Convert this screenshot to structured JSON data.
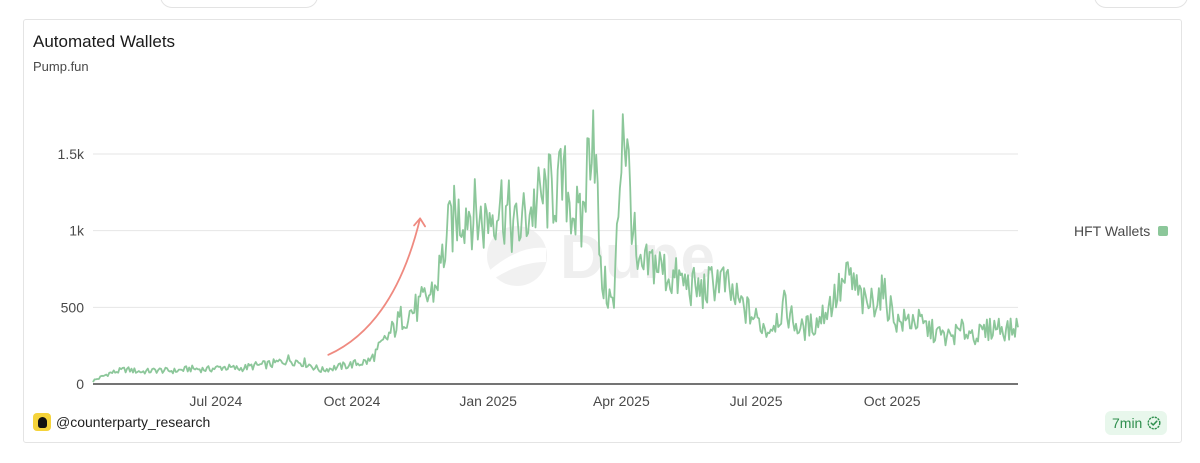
{
  "card": {
    "title": "Automated Wallets",
    "subtitle": "Pump.fun",
    "attribution": "@counterparty_research",
    "refresh_badge": "7min",
    "watermark": "Dune"
  },
  "colors": {
    "series": "#8cc79a",
    "annotation_arrow": "#ef8a80",
    "grid": "#e6e6e6",
    "badge_bg": "#e8f7ec",
    "badge_text": "#2f8f4e"
  },
  "chart_data": {
    "type": "line",
    "title": "Automated Wallets",
    "subtitle": "Pump.fun",
    "xlabel": "",
    "ylabel": "",
    "x_range": [
      "2024-04-09",
      "2025-12-25"
    ],
    "ylim": [
      0,
      1800
    ],
    "y_ticks": [
      {
        "value": 0,
        "label": "0"
      },
      {
        "value": 500,
        "label": "500"
      },
      {
        "value": 1000,
        "label": "1k"
      },
      {
        "value": 1500,
        "label": "1.5k"
      }
    ],
    "x_ticks": [
      {
        "date": "2024-07-01",
        "label": "Jul 2024"
      },
      {
        "date": "2024-10-01",
        "label": "Oct 2024"
      },
      {
        "date": "2025-01-01",
        "label": "Jan 2025"
      },
      {
        "date": "2025-04-01",
        "label": "Apr 2025"
      },
      {
        "date": "2025-07-01",
        "label": "Jul 2025"
      },
      {
        "date": "2025-10-01",
        "label": "Oct 2025"
      }
    ],
    "grid": true,
    "legend": "right",
    "series": [
      {
        "name": "HFT Wallets",
        "points": [
          [
            "2024-04-09",
            20
          ],
          [
            "2024-04-20",
            70
          ],
          [
            "2024-05-01",
            95
          ],
          [
            "2024-05-12",
            80
          ],
          [
            "2024-05-23",
            90
          ],
          [
            "2024-06-03",
            85
          ],
          [
            "2024-06-14",
            100
          ],
          [
            "2024-06-25",
            95
          ],
          [
            "2024-07-06",
            110
          ],
          [
            "2024-07-17",
            100
          ],
          [
            "2024-07-28",
            120
          ],
          [
            "2024-08-08",
            130
          ],
          [
            "2024-08-19",
            160
          ],
          [
            "2024-08-30",
            140
          ],
          [
            "2024-09-10",
            90
          ],
          [
            "2024-09-21",
            110
          ],
          [
            "2024-10-02",
            130
          ],
          [
            "2024-10-13",
            150
          ],
          [
            "2024-10-24",
            290
          ],
          [
            "2024-11-04",
            440
          ],
          [
            "2024-11-15",
            500
          ],
          [
            "2024-11-26",
            620
          ],
          [
            "2024-12-07",
            1050
          ],
          [
            "2024-12-18",
            1150
          ],
          [
            "2024-12-29",
            1050
          ],
          [
            "2025-01-09",
            1200
          ],
          [
            "2025-01-20",
            1000
          ],
          [
            "2025-01-31",
            1150
          ],
          [
            "2025-02-11",
            1250
          ],
          [
            "2025-02-22",
            1300
          ],
          [
            "2025-03-05",
            1000
          ],
          [
            "2025-03-13",
            1820
          ],
          [
            "2025-03-18",
            700
          ],
          [
            "2025-03-27",
            500
          ],
          [
            "2025-04-02",
            1800
          ],
          [
            "2025-04-12",
            700
          ],
          [
            "2025-04-23",
            800
          ],
          [
            "2025-05-04",
            700
          ],
          [
            "2025-05-15",
            650
          ],
          [
            "2025-05-26",
            600
          ],
          [
            "2025-06-06",
            700
          ],
          [
            "2025-06-17",
            550
          ],
          [
            "2025-06-28",
            450
          ],
          [
            "2025-07-09",
            350
          ],
          [
            "2025-07-20",
            500
          ],
          [
            "2025-07-31",
            350
          ],
          [
            "2025-08-11",
            400
          ],
          [
            "2025-08-22",
            550
          ],
          [
            "2025-09-02",
            700
          ],
          [
            "2025-09-13",
            500
          ],
          [
            "2025-09-24",
            600
          ],
          [
            "2025-10-05",
            400
          ],
          [
            "2025-10-16",
            420
          ],
          [
            "2025-10-27",
            350
          ],
          [
            "2025-11-07",
            300
          ],
          [
            "2025-11-18",
            350
          ],
          [
            "2025-11-29",
            320
          ],
          [
            "2025-12-10",
            380
          ],
          [
            "2025-12-20",
            350
          ],
          [
            "2025-12-25",
            370
          ]
        ]
      }
    ],
    "annotation": {
      "type": "arrow",
      "from": [
        "2024-09-15",
        190
      ],
      "to": [
        "2024-11-16",
        1080
      ]
    }
  },
  "legend": {
    "label": "HFT Wallets"
  }
}
